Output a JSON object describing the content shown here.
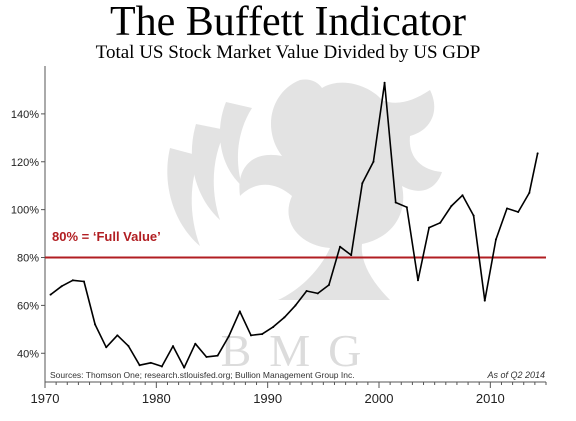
{
  "header": {
    "title": "The Buffett Indicator",
    "subtitle": "Total US Stock Market Value Divided by US GDP"
  },
  "footer": {
    "source": "Sources: Thomson One; research.stlouisfed.org; Bullion Management Group Inc.",
    "as_of": "As of Q2 2014"
  },
  "watermark": {
    "text": "BMG",
    "icon": "griffin-logo-icon"
  },
  "reference_line": {
    "value": 80,
    "label": "80% = ‘Full Value’",
    "color": "#b11e22"
  },
  "colors": {
    "line": "#000000",
    "reference": "#b11e22",
    "axis": "#555555",
    "watermark": "#dcdcdc"
  },
  "chart_data": {
    "type": "line",
    "title": "The Buffett Indicator",
    "subtitle": "Total US Stock Market Value Divided by US GDP",
    "xlabel": "",
    "ylabel": "",
    "xlim": [
      1970,
      2015
    ],
    "ylim": [
      28,
      160
    ],
    "x_ticks": [
      1970,
      1980,
      1990,
      2000,
      2010
    ],
    "y_ticks": [
      40,
      60,
      80,
      100,
      120,
      140
    ],
    "y_tick_labels": [
      "40%",
      "60%",
      "80%",
      "100%",
      "120%",
      "140%"
    ],
    "x_tick_labels": [
      "1970",
      "1980",
      "1990",
      "2000",
      "2010"
    ],
    "grid": false,
    "series": [
      {
        "x": [
          1970.5,
          1971.5,
          1972.5,
          1973.5,
          1974.5,
          1975.5,
          1976.5,
          1977.5,
          1978.5,
          1979.5,
          1980.5,
          1981.5,
          1982.5,
          1983.5,
          1984.5,
          1985.5,
          1986.5,
          1987.5,
          1988.5,
          1989.5,
          1990.5,
          1991.5,
          1992.5,
          1993.5,
          1994.5,
          1995.5,
          1996.5,
          1997.5,
          1998.5,
          1999.5,
          2000.5,
          2001.5,
          2002.5,
          2003.5,
          2004.5,
          2005.5,
          2006.5,
          2007.5,
          2008.5,
          2009.5,
          2010.5,
          2011.5,
          2012.5,
          2013.5,
          2014.25
        ],
        "values": [
          64.5,
          68,
          70.5,
          70,
          52,
          42.5,
          47.5,
          43,
          35,
          36,
          34.5,
          43,
          34,
          44,
          38.5,
          39,
          47,
          57.5,
          47.5,
          48,
          51,
          55,
          60,
          66,
          65,
          68.5,
          84.5,
          81,
          111,
          120,
          153,
          103,
          101,
          70.5,
          92.5,
          94.5,
          101.5,
          106,
          97.5,
          62,
          87.5,
          100.5,
          99,
          107,
          123.5
        ]
      }
    ]
  }
}
